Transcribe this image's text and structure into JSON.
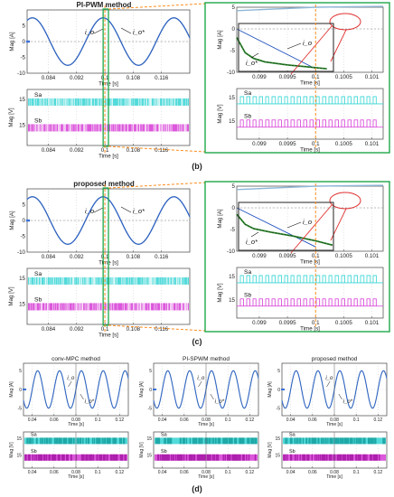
{
  "panel_labels": {
    "b": "(b)",
    "c": "(c)",
    "d": "(d)"
  },
  "colors": {
    "current": "#1f4fbf",
    "reference": "#8fb7d8",
    "green_trace": "#2e8b2e",
    "sa": "#35d4d4",
    "sb": "#d63ad6",
    "sa_dark": "#1aa3a3",
    "sb_dark": "#a81aa8",
    "zoom_box": "#1ea84a",
    "connector": "#ff8c1a",
    "ellipse": "#e03030",
    "axis": "#333333",
    "frame": "#222222"
  },
  "chart_data": [
    {
      "id": "b-main-current",
      "type": "line",
      "title": "PI-PWM method",
      "xlabel": "Time [s]",
      "ylabel": "Mag [A]",
      "xlim": [
        0.078,
        0.124
      ],
      "ylim": [
        -10,
        10
      ],
      "xticks": [
        0.084,
        0.092,
        0.1,
        0.108,
        0.116
      ],
      "xtick_labels": [
        "0.084",
        "0.092",
        "0.1",
        "0.108",
        "0.116"
      ],
      "yticks": [
        -10,
        -5,
        0,
        5
      ],
      "ytick_labels": [
        "-10",
        "-5",
        "0",
        "5"
      ],
      "annotations": [
        "i_o",
        "i_o*"
      ],
      "series": [
        {
          "name": "i_o",
          "role": "current",
          "amplitude": 7.5,
          "freq_hz": 50,
          "peak_at": 0.0995
        },
        {
          "name": "i_o*",
          "role": "reference",
          "amplitude": 7.5,
          "freq_hz": 50,
          "peak_at": 0.0995
        }
      ]
    },
    {
      "id": "b-main-switch",
      "type": "line",
      "xlabel": "Time [s]",
      "ylabel": "Mag [V]",
      "xlim": [
        0.078,
        0.124
      ],
      "ylim": [
        0,
        20
      ],
      "xticks": [
        0.084,
        0.092,
        0.1,
        0.108,
        0.116
      ],
      "xtick_labels": [
        "0.084",
        "0.092",
        "0.1",
        "0.108",
        "0.116"
      ],
      "yticks": [
        15,
        15
      ],
      "ytick_labels": [
        "15",
        "15"
      ],
      "annotations": [
        "Sa",
        "Sb"
      ],
      "series": [
        {
          "name": "Sa",
          "role": "switch",
          "high": 15,
          "band": "upper",
          "pulse_density": "dense"
        },
        {
          "name": "Sb",
          "role": "switch",
          "high": 15,
          "band": "lower",
          "pulse_density": "dense"
        }
      ]
    },
    {
      "id": "b-zoom-current",
      "type": "line",
      "xlabel": "Time [s]",
      "ylabel": "Mag [A]",
      "xlim": [
        0.0986,
        0.1012
      ],
      "ylim": [
        -10,
        5
      ],
      "xticks": [
        0.099,
        0.0995,
        0.1,
        0.1005,
        0.101
      ],
      "xtick_labels": [
        "0.099",
        "0.0995",
        "0.1",
        "0.1005",
        "0.101"
      ],
      "yticks": [
        -10,
        -5,
        0,
        5
      ],
      "ytick_labels": [
        "-10",
        "-5",
        "0",
        "5"
      ],
      "annotations": [
        "i_o",
        "i_o*"
      ],
      "series": [
        {
          "name": "i_o*",
          "role": "reference_ramp",
          "points": [
            [
              0.0986,
              4.2
            ],
            [
              0.1,
              5.0
            ],
            [
              0.1012,
              5.2
            ]
          ]
        },
        {
          "name": "i_o",
          "role": "current_decay",
          "points": [
            [
              0.0986,
              -2.0
            ],
            [
              0.09875,
              -5.5
            ],
            [
              0.0989,
              -6.8
            ],
            [
              0.0991,
              -7.6
            ],
            [
              0.0995,
              -8.3
            ],
            [
              0.0999,
              -8.8
            ],
            [
              0.1002,
              -9.2
            ]
          ]
        },
        {
          "name": "i_o_ramp",
          "role": "current_ramp",
          "points": [
            [
              0.0986,
              0.0
            ],
            [
              0.1,
              -9.2
            ]
          ]
        }
      ]
    },
    {
      "id": "b-zoom-switch",
      "type": "line",
      "xlabel": "Time [s]",
      "ylabel": "Mag [V]",
      "xlim": [
        0.0986,
        0.1012
      ],
      "ylim": [
        0,
        20
      ],
      "xticks": [
        0.099,
        0.0995,
        0.1,
        0.1005,
        0.101
      ],
      "xtick_labels": [
        "0.099",
        "0.0995",
        "0.1",
        "0.1005",
        "0.101"
      ],
      "yticks": [
        15,
        15
      ],
      "ytick_labels": [
        "15",
        "15"
      ],
      "annotations": [
        "Sa",
        "Sb"
      ],
      "series": [
        {
          "name": "Sa",
          "role": "switch",
          "high": 15,
          "band": "upper",
          "pulse_density": "sparse"
        },
        {
          "name": "Sb",
          "role": "switch",
          "high": 15,
          "band": "lower",
          "pulse_density": "sparse"
        }
      ]
    },
    {
      "id": "c-main-current",
      "type": "line",
      "title": "proposed method",
      "xlabel": "Time [s]",
      "ylabel": "Mag [A]",
      "xlim": [
        0.078,
        0.124
      ],
      "ylim": [
        -10,
        10
      ],
      "xticks": [
        0.084,
        0.092,
        0.1,
        0.108,
        0.116
      ],
      "xtick_labels": [
        "0.084",
        "0.092",
        "0.1",
        "0.108",
        "0.116"
      ],
      "yticks": [
        -10,
        -5,
        0,
        5
      ],
      "ytick_labels": [
        "-10",
        "-5",
        "0",
        "5"
      ],
      "annotations": [
        "i_o",
        "i_o*"
      ],
      "series": [
        {
          "name": "i_o",
          "role": "current",
          "amplitude": 7.5,
          "freq_hz": 50,
          "peak_at": 0.0995
        },
        {
          "name": "i_o*",
          "role": "reference",
          "amplitude": 7.5,
          "freq_hz": 50,
          "peak_at": 0.0995
        }
      ]
    },
    {
      "id": "c-main-switch",
      "type": "line",
      "xlabel": "Time [s]",
      "ylabel": "Mag [V]",
      "xlim": [
        0.078,
        0.124
      ],
      "ylim": [
        0,
        20
      ],
      "xticks": [
        0.084,
        0.092,
        0.1,
        0.108,
        0.116
      ],
      "xtick_labels": [
        "0.084",
        "0.092",
        "0.1",
        "0.108",
        "0.116"
      ],
      "yticks": [
        15,
        15
      ],
      "ytick_labels": [
        "15",
        "15"
      ],
      "annotations": [
        "Sa",
        "Sb"
      ],
      "series": [
        {
          "name": "Sa",
          "role": "switch",
          "high": 15,
          "band": "upper",
          "pulse_density": "dense"
        },
        {
          "name": "Sb",
          "role": "switch",
          "high": 15,
          "band": "lower",
          "pulse_density": "dense"
        }
      ]
    },
    {
      "id": "c-zoom-current",
      "type": "line",
      "xlabel": "Time [s]",
      "ylabel": "Mag [A]",
      "xlim": [
        0.0986,
        0.1012
      ],
      "ylim": [
        -10,
        5
      ],
      "xticks": [
        0.099,
        0.0995,
        0.1,
        0.1005,
        0.101
      ],
      "xtick_labels": [
        "0.099",
        "0.0995",
        "0.1",
        "0.1005",
        "0.101"
      ],
      "yticks": [
        -10,
        -5,
        0,
        5
      ],
      "ytick_labels": [
        "-10",
        "-5",
        "0",
        "5"
      ],
      "annotations": [
        "i_o",
        "i_o*"
      ],
      "series": [
        {
          "name": "i_o*",
          "role": "reference_ramp",
          "points": [
            [
              0.0986,
              4.2
            ],
            [
              0.1,
              5.0
            ],
            [
              0.1012,
              5.2
            ]
          ]
        },
        {
          "name": "i_o",
          "role": "current_decay",
          "points": [
            [
              0.0986,
              -1.5
            ],
            [
              0.09875,
              -3.8
            ],
            [
              0.0989,
              -4.8
            ],
            [
              0.0992,
              -5.6
            ],
            [
              0.0996,
              -6.5
            ],
            [
              0.1,
              -7.6
            ],
            [
              0.1003,
              -8.6
            ]
          ]
        },
        {
          "name": "i_o_ramp",
          "role": "current_ramp",
          "points": [
            [
              0.0986,
              0.0
            ],
            [
              0.1,
              -9.0
            ]
          ]
        }
      ]
    },
    {
      "id": "c-zoom-switch",
      "type": "line",
      "xlabel": "Time [s]",
      "ylabel": "Mag [V]",
      "xlim": [
        0.0986,
        0.1012
      ],
      "ylim": [
        0,
        20
      ],
      "xticks": [
        0.099,
        0.0995,
        0.1,
        0.1005,
        0.101
      ],
      "xtick_labels": [
        "0.099",
        "0.0995",
        "0.1",
        "0.1005",
        "0.101"
      ],
      "yticks": [
        15,
        15
      ],
      "ytick_labels": [
        "15",
        "15"
      ],
      "annotations": [
        "Sa",
        "Sb"
      ],
      "series": [
        {
          "name": "Sa",
          "role": "switch",
          "high": 15,
          "band": "upper",
          "pulse_density": "sparse"
        },
        {
          "name": "Sb",
          "role": "switch",
          "high": 15,
          "band": "lower",
          "pulse_density": "sparse"
        }
      ]
    },
    {
      "id": "d1-current",
      "type": "line",
      "title": "conv-MPC method",
      "xlabel": "Time [s]",
      "ylabel": "Mag [A]",
      "xlim": [
        0.032,
        0.128
      ],
      "ylim": [
        -7,
        7
      ],
      "xticks": [
        0.04,
        0.06,
        0.08,
        0.1,
        0.12
      ],
      "xtick_labels": [
        "0.04",
        "0.06",
        "0.08",
        "0.1",
        "0.12"
      ],
      "yticks": [
        5,
        0,
        -5
      ],
      "ytick_labels": [
        "5",
        "0",
        "-5"
      ],
      "annotations": [
        "i_o",
        "i_o*"
      ],
      "series": [
        {
          "name": "i_o",
          "role": "current",
          "amplitude": 5,
          "freq_hz": 50
        },
        {
          "name": "i_o*",
          "role": "reference",
          "amplitude": 5,
          "freq_hz": 50
        }
      ]
    },
    {
      "id": "d1-switch",
      "type": "line",
      "xlabel": "Time [s]",
      "ylabel": "Mag [V]",
      "xlim": [
        0.032,
        0.128
      ],
      "ylim": [
        0,
        20
      ],
      "xticks": [
        0.04,
        0.06,
        0.08,
        0.1,
        0.12
      ],
      "xtick_labels": [
        "0.04",
        "0.06",
        "0.08",
        "0.1",
        "0.12"
      ],
      "yticks": [
        15,
        15
      ],
      "ytick_labels": [
        "15",
        "15"
      ],
      "annotations": [
        "Sa",
        "Sb"
      ],
      "series": [
        {
          "name": "Sa",
          "role": "switch",
          "band": "upper",
          "pulse_density": "very-dense"
        },
        {
          "name": "Sb",
          "role": "switch",
          "band": "lower",
          "pulse_density": "very-dense"
        }
      ]
    },
    {
      "id": "d2-current",
      "type": "line",
      "title": "PI-SPWM method",
      "xlabel": "Time [s]",
      "ylabel": "Mag [A]",
      "xlim": [
        0.032,
        0.128
      ],
      "ylim": [
        -7,
        7
      ],
      "xticks": [
        0.04,
        0.06,
        0.08,
        0.1,
        0.12
      ],
      "xtick_labels": [
        "0.04",
        "0.06",
        "0.08",
        "0.1",
        "0.12"
      ],
      "yticks": [
        5,
        0,
        -5
      ],
      "ytick_labels": [
        "5",
        "0",
        "-5"
      ],
      "annotations": [
        "i_o",
        "i_o*"
      ],
      "series": [
        {
          "name": "i_o",
          "role": "current",
          "amplitude": 5,
          "freq_hz": 50
        },
        {
          "name": "i_o*",
          "role": "reference",
          "amplitude": 5,
          "freq_hz": 50
        }
      ]
    },
    {
      "id": "d2-switch",
      "type": "line",
      "xlabel": "Time [s]",
      "ylabel": "Mag [V]",
      "xlim": [
        0.032,
        0.128
      ],
      "ylim": [
        0,
        20
      ],
      "xticks": [
        0.04,
        0.06,
        0.08,
        0.1,
        0.12
      ],
      "xtick_labels": [
        "0.04",
        "0.06",
        "0.08",
        "0.1",
        "0.12"
      ],
      "yticks": [
        15,
        15
      ],
      "ytick_labels": [
        "15",
        "15"
      ],
      "annotations": [
        "Sa",
        "Sb"
      ],
      "series": [
        {
          "name": "Sa",
          "role": "switch",
          "band": "upper",
          "pulse_density": "very-dense"
        },
        {
          "name": "Sb",
          "role": "switch",
          "band": "lower",
          "pulse_density": "very-dense"
        }
      ]
    },
    {
      "id": "d3-current",
      "type": "line",
      "title": "proposed method",
      "xlabel": "Time [s]",
      "ylabel": "Mag [A]",
      "xlim": [
        0.032,
        0.128
      ],
      "ylim": [
        -7,
        7
      ],
      "xticks": [
        0.04,
        0.06,
        0.08,
        0.1,
        0.12
      ],
      "xtick_labels": [
        "0.04",
        "0.06",
        "0.08",
        "0.1",
        "0.12"
      ],
      "yticks": [
        5,
        0,
        -5
      ],
      "ytick_labels": [
        "5",
        "0",
        "-5"
      ],
      "annotations": [
        "i_o",
        "i_o*"
      ],
      "series": [
        {
          "name": "i_o",
          "role": "current",
          "amplitude": 5,
          "freq_hz": 50
        },
        {
          "name": "i_o*",
          "role": "reference",
          "amplitude": 5,
          "freq_hz": 50
        }
      ]
    },
    {
      "id": "d3-switch",
      "type": "line",
      "xlabel": "Time [s]",
      "ylabel": "Mag [V]",
      "xlim": [
        0.032,
        0.128
      ],
      "ylim": [
        0,
        20
      ],
      "xticks": [
        0.04,
        0.06,
        0.08,
        0.1,
        0.12
      ],
      "xtick_labels": [
        "0.04",
        "0.06",
        "0.08",
        "0.1",
        "0.12"
      ],
      "yticks": [
        15,
        15
      ],
      "ytick_labels": [
        "15",
        "15"
      ],
      "annotations": [
        "Sa",
        "Sb"
      ],
      "series": [
        {
          "name": "Sa",
          "role": "switch",
          "band": "upper",
          "pulse_density": "very-dense"
        },
        {
          "name": "Sb",
          "role": "switch",
          "band": "lower",
          "pulse_density": "very-dense"
        }
      ]
    }
  ]
}
